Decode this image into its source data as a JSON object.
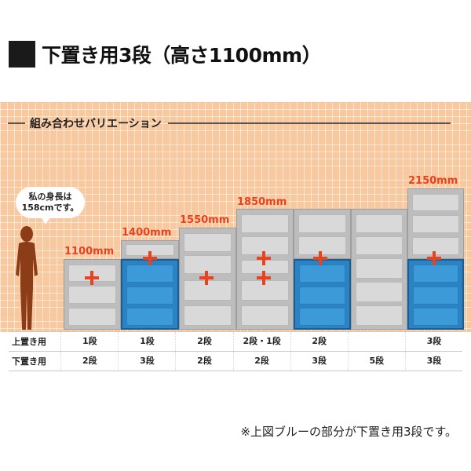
{
  "title": "下置き用3段（高さ1100mm）",
  "section_label": "組み合わせバリエーション",
  "bubble": {
    "line1": "私の身長は",
    "line2": "158cmです。"
  },
  "heights": [
    "1100mm",
    "1400mm",
    "1550mm",
    "1850mm",
    "2150mm"
  ],
  "table": {
    "rows": [
      {
        "header": "上置き用",
        "cells": [
          "1段",
          "1段",
          "2段",
          "2段・1段",
          "2段",
          "",
          "3段"
        ]
      },
      {
        "header": "下置き用",
        "cells": [
          "2段",
          "3段",
          "2段",
          "2段",
          "3段",
          "5段",
          "3段"
        ]
      }
    ]
  },
  "footnote": "※上図ブルーの部分が下置き用3段です。",
  "colors": {
    "accent": "#e8421e",
    "blue": "#3d9ad8",
    "gray": "#d9d9d9",
    "grid_bg": "#f8c89e"
  }
}
